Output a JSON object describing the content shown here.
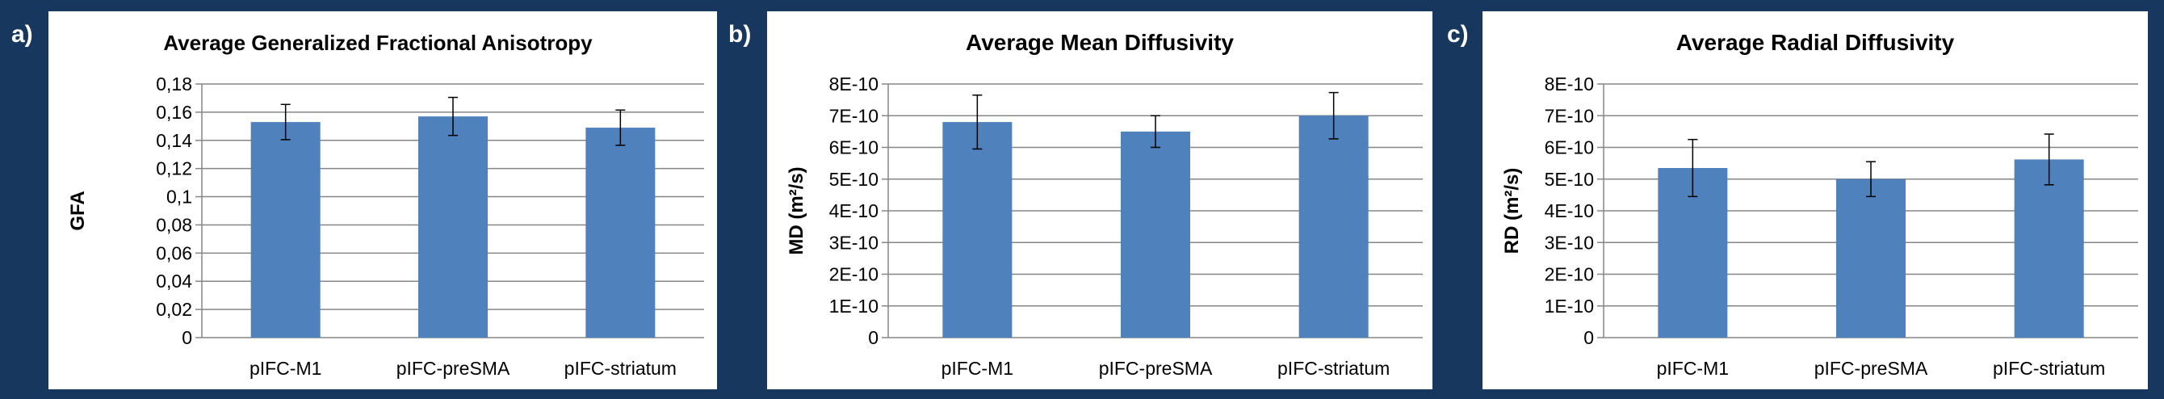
{
  "colors": {
    "background": "#17375e",
    "bar": "#4f81bd",
    "grid": "#868686",
    "error_bar": "#000000",
    "panel": "#ffffff"
  },
  "chart_data": [
    {
      "panel_label": "a)",
      "type": "bar",
      "title": "Average Generalized Fractional Anisotropy",
      "xlabel": "",
      "ylabel": "GFA",
      "ylim": [
        0,
        0.18
      ],
      "y_ticks": [
        0,
        0.02,
        0.04,
        0.06,
        0.08,
        0.1,
        0.12,
        0.14,
        0.16,
        0.18
      ],
      "y_tick_labels": [
        "0",
        "0,02",
        "0,04",
        "0,06",
        "0,08",
        "0,1",
        "0,12",
        "0,14",
        "0,16",
        "0,18"
      ],
      "grid": true,
      "categories": [
        "pIFC-M1",
        "pIFC-preSMA",
        "pIFC-striatum"
      ],
      "values": [
        0.153,
        0.157,
        0.149
      ],
      "error": [
        0.0125,
        0.0135,
        0.0125
      ]
    },
    {
      "panel_label": "b)",
      "type": "bar",
      "title": "Average Mean Diffusivity",
      "xlabel": "",
      "ylabel": "MD (m²/s)",
      "ylim": [
        0,
        8e-10
      ],
      "y_ticks": [
        0,
        1e-10,
        2e-10,
        3e-10,
        4e-10,
        5e-10,
        6e-10,
        7e-10,
        8e-10
      ],
      "y_tick_labels": [
        "0",
        "1E-10",
        "2E-10",
        "3E-10",
        "4E-10",
        "5E-10",
        "6E-10",
        "7E-10",
        "8E-10"
      ],
      "grid": true,
      "categories": [
        "pIFC-M1",
        "pIFC-preSMA",
        "pIFC-striatum"
      ],
      "values": [
        6.8e-10,
        6.5e-10,
        7e-10
      ],
      "error": [
        8.5e-11,
        5e-11,
        7.3e-11
      ]
    },
    {
      "panel_label": "c)",
      "type": "bar",
      "title": "Average Radial Diffusivity",
      "xlabel": "",
      "ylabel": "RD (m²/s)",
      "ylim": [
        0,
        8e-10
      ],
      "y_ticks": [
        0,
        1e-10,
        2e-10,
        3e-10,
        4e-10,
        5e-10,
        6e-10,
        7e-10,
        8e-10
      ],
      "y_tick_labels": [
        "0",
        "1E-10",
        "2E-10",
        "3E-10",
        "4E-10",
        "5E-10",
        "6E-10",
        "7E-10",
        "8E-10"
      ],
      "grid": true,
      "categories": [
        "pIFC-M1",
        "pIFC-preSMA",
        "pIFC-striatum"
      ],
      "values": [
        5.35e-10,
        5e-10,
        5.62e-10
      ],
      "error": [
        9e-11,
        5.5e-11,
        8e-11
      ]
    }
  ]
}
